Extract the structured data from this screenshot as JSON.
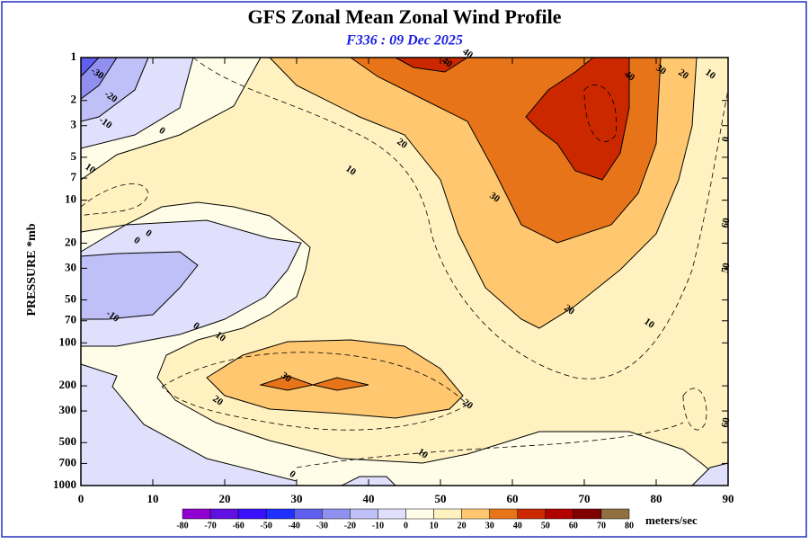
{
  "chart_data": {
    "type": "contour",
    "title": "GFS Zonal Mean Zonal Wind Profile",
    "subtitle": "F336 : 09 Dec 2025",
    "y_label": "PRESSURE *mb",
    "xlim": [
      0,
      90
    ],
    "xticks": [
      0,
      10,
      20,
      30,
      40,
      50,
      60,
      70,
      80,
      90
    ],
    "ylim": [
      1,
      1000
    ],
    "y_log": true,
    "y_inverted": true,
    "yticks": [
      1,
      2,
      3,
      5,
      7,
      10,
      20,
      30,
      50,
      70,
      100,
      200,
      300,
      500,
      700,
      1000
    ],
    "colorbar": {
      "levels": [
        -80,
        -70,
        -60,
        -50,
        -40,
        -30,
        -20,
        -10,
        0,
        10,
        20,
        30,
        40,
        50,
        60,
        70,
        80
      ],
      "colors": [
        "#9000d0",
        "#6010e0",
        "#3a10ff",
        "#2030ff",
        "#6060f0",
        "#9090f0",
        "#c0c0f8",
        "#e0e0fc",
        "#fffde8",
        "#fff2c0",
        "#ffc870",
        "#e8741a",
        "#cc2800",
        "#b00000",
        "#800000",
        "#907040"
      ],
      "unit": "meters/sec"
    },
    "contour_labels": [
      -30,
      -20,
      -10,
      0,
      10,
      10,
      20,
      30,
      40,
      40,
      40,
      30,
      20,
      10,
      0,
      60,
      50,
      60,
      0,
      0,
      -10,
      0,
      10,
      30,
      20,
      20,
      20,
      10,
      10,
      0
    ]
  }
}
